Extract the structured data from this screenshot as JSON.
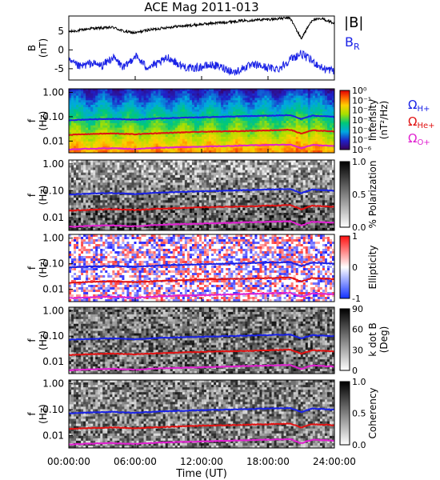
{
  "title": "ACE Mag 2011-013",
  "xlabel": "Time (UT)",
  "x_ticks": [
    "00:00:00",
    "06:00:00",
    "12:00:00",
    "18:00:00",
    "24:00:00"
  ],
  "x_range_hours": [
    0,
    24
  ],
  "legend_B": {
    "total": "|B|",
    "radial_base": "B",
    "radial_sub": "R"
  },
  "gyro_legend": [
    {
      "base": "Ω",
      "sub": "H+",
      "color": "#1a22e6"
    },
    {
      "base": "Ω",
      "sub": "He+",
      "color": "#e01212"
    },
    {
      "base": "Ω",
      "sub": "O+",
      "color": "#e020d0"
    }
  ],
  "colors": {
    "B_total": "#000000",
    "B_radial": "#1a22e6",
    "H": "#1a22e6",
    "He": "#e01212",
    "O": "#e020d0"
  },
  "chart_data": {
    "type": "multi-panel-spectrogram",
    "panels": [
      {
        "id": "b-field",
        "type": "line",
        "ylabel": "B",
        "yunit": "(nT)",
        "y_ticks": [
          "5",
          "0",
          "-5"
        ],
        "ylim": [
          -8,
          9
        ],
        "series": [
          {
            "name": "|B|",
            "x_hours": [
              0,
              1,
              2,
              3,
              4,
              5,
              6,
              7,
              8,
              9,
              10,
              11,
              12,
              13,
              14,
              15,
              16,
              17,
              18,
              19,
              20,
              21,
              22,
              23,
              24
            ],
            "values": [
              4.8,
              5.2,
              5.7,
              5.8,
              6.0,
              4.9,
              4.5,
              5.2,
              5.6,
              6.0,
              6.3,
              6.5,
              6.8,
              7.1,
              7.3,
              7.6,
              7.8,
              8.0,
              8.1,
              8.3,
              8.5,
              3.0,
              8.0,
              8.2,
              7.0
            ]
          },
          {
            "name": "B_R",
            "x_hours": [
              0,
              1,
              2,
              3,
              4,
              5,
              6,
              7,
              8,
              9,
              10,
              11,
              12,
              13,
              14,
              15,
              16,
              17,
              18,
              19,
              20,
              21,
              22,
              23,
              24
            ],
            "values": [
              -3.0,
              -4.5,
              -3.5,
              -4.2,
              -2.0,
              -4.8,
              -1.5,
              -4.5,
              -3.8,
              -2.0,
              -4.0,
              -5.0,
              -4.5,
              -4.0,
              -4.8,
              -6.0,
              -4.5,
              -4.0,
              -4.8,
              -5.0,
              -2.5,
              -1.0,
              -3.0,
              -5.0,
              -5.5
            ]
          }
        ]
      },
      {
        "id": "intensity",
        "type": "heatmap",
        "ylabel": "f",
        "yunit": "(Hz)",
        "y_ticks": [
          "1.00",
          "0.10",
          "0.01"
        ],
        "colorbar_title": "Intensity",
        "colorbar_unit": "(nT²/Hz)",
        "colorbar_ticks": [
          "10⁰",
          "10⁻¹",
          "10⁻²",
          "10⁻³",
          "10⁻⁴",
          "10⁻⁵",
          "10⁻⁶"
        ],
        "colorbar_scale": "rainbow"
      },
      {
        "id": "polarization",
        "type": "heatmap",
        "ylabel": "f",
        "yunit": "(Hz)",
        "y_ticks": [
          "1.00",
          "0.10",
          "0.01"
        ],
        "colorbar_title": "% Polarization",
        "colorbar_unit": "",
        "colorbar_ticks": [
          "1.0",
          "0.5",
          "0.0"
        ],
        "colorbar_scale": "gray"
      },
      {
        "id": "ellipticity",
        "type": "heatmap",
        "ylabel": "f",
        "yunit": "(Hz)",
        "y_ticks": [
          "1.00",
          "0.10",
          "0.01"
        ],
        "colorbar_title": "Ellipticity",
        "colorbar_unit": "",
        "colorbar_ticks": [
          "1",
          "0",
          "-1"
        ],
        "colorbar_scale": "red-white-blue"
      },
      {
        "id": "kdotb",
        "type": "heatmap",
        "ylabel": "f",
        "yunit": "(Hz)",
        "y_ticks": [
          "1.00",
          "0.10",
          "0.01"
        ],
        "colorbar_title": "k dot B",
        "colorbar_unit": "(Deg)",
        "colorbar_ticks": [
          "90",
          "60",
          "30",
          "0"
        ],
        "colorbar_scale": "gray"
      },
      {
        "id": "coherency",
        "type": "heatmap",
        "ylabel": "f",
        "yunit": "(Hz)",
        "y_ticks": [
          "1.00",
          "0.10",
          "0.01"
        ],
        "colorbar_title": "Coherency",
        "colorbar_unit": "",
        "colorbar_ticks": [
          "1.0",
          "0.5",
          "0.0"
        ],
        "colorbar_scale": "gray"
      }
    ],
    "gyrofrequency_lines": {
      "x_hours": [
        0,
        2,
        4,
        6,
        8,
        10,
        12,
        14,
        16,
        18,
        20,
        21,
        22,
        24
      ],
      "H_plus_hz": [
        0.072,
        0.078,
        0.082,
        0.075,
        0.085,
        0.09,
        0.095,
        0.1,
        0.105,
        0.11,
        0.115,
        0.08,
        0.11,
        0.1
      ],
      "He_plus_hz": [
        0.018,
        0.0195,
        0.0205,
        0.019,
        0.021,
        0.0225,
        0.024,
        0.025,
        0.026,
        0.0275,
        0.029,
        0.02,
        0.0275,
        0.025
      ],
      "O_plus_hz": [
        0.0045,
        0.0049,
        0.0051,
        0.0047,
        0.0053,
        0.0056,
        0.0059,
        0.0062,
        0.0066,
        0.0069,
        0.0072,
        0.005,
        0.0069,
        0.0063
      ]
    }
  }
}
